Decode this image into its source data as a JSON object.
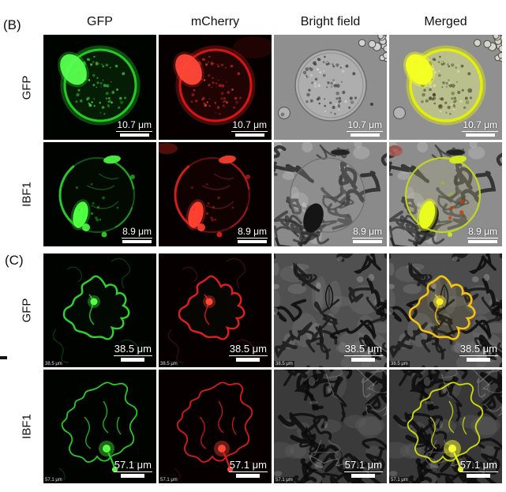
{
  "figure": {
    "panels": {
      "b": "(B)",
      "c": "(C)"
    },
    "columns": [
      "GFP",
      "mCherry",
      "Bright field",
      "Merged"
    ],
    "rows": [
      {
        "panel": "B",
        "label": "GFP",
        "scale": "10.7 μm"
      },
      {
        "panel": "B",
        "label": "IBF1",
        "scale": "8.9 μm"
      },
      {
        "panel": "C",
        "label": "GFP",
        "scale": "38.5 μm",
        "corner": "38.5 μm"
      },
      {
        "panel": "C",
        "label": "IBF1",
        "scale": "57.1 μm",
        "corner": "57.1 μm"
      }
    ],
    "colors": {
      "gfp": "#2bd42b",
      "mcherry": "#e01818",
      "merged": "#e8f000",
      "brightfield_bg": "#8f8f8f",
      "background": "#ffffff",
      "label_text": "#111111",
      "scale_text": "#ffffff"
    }
  }
}
